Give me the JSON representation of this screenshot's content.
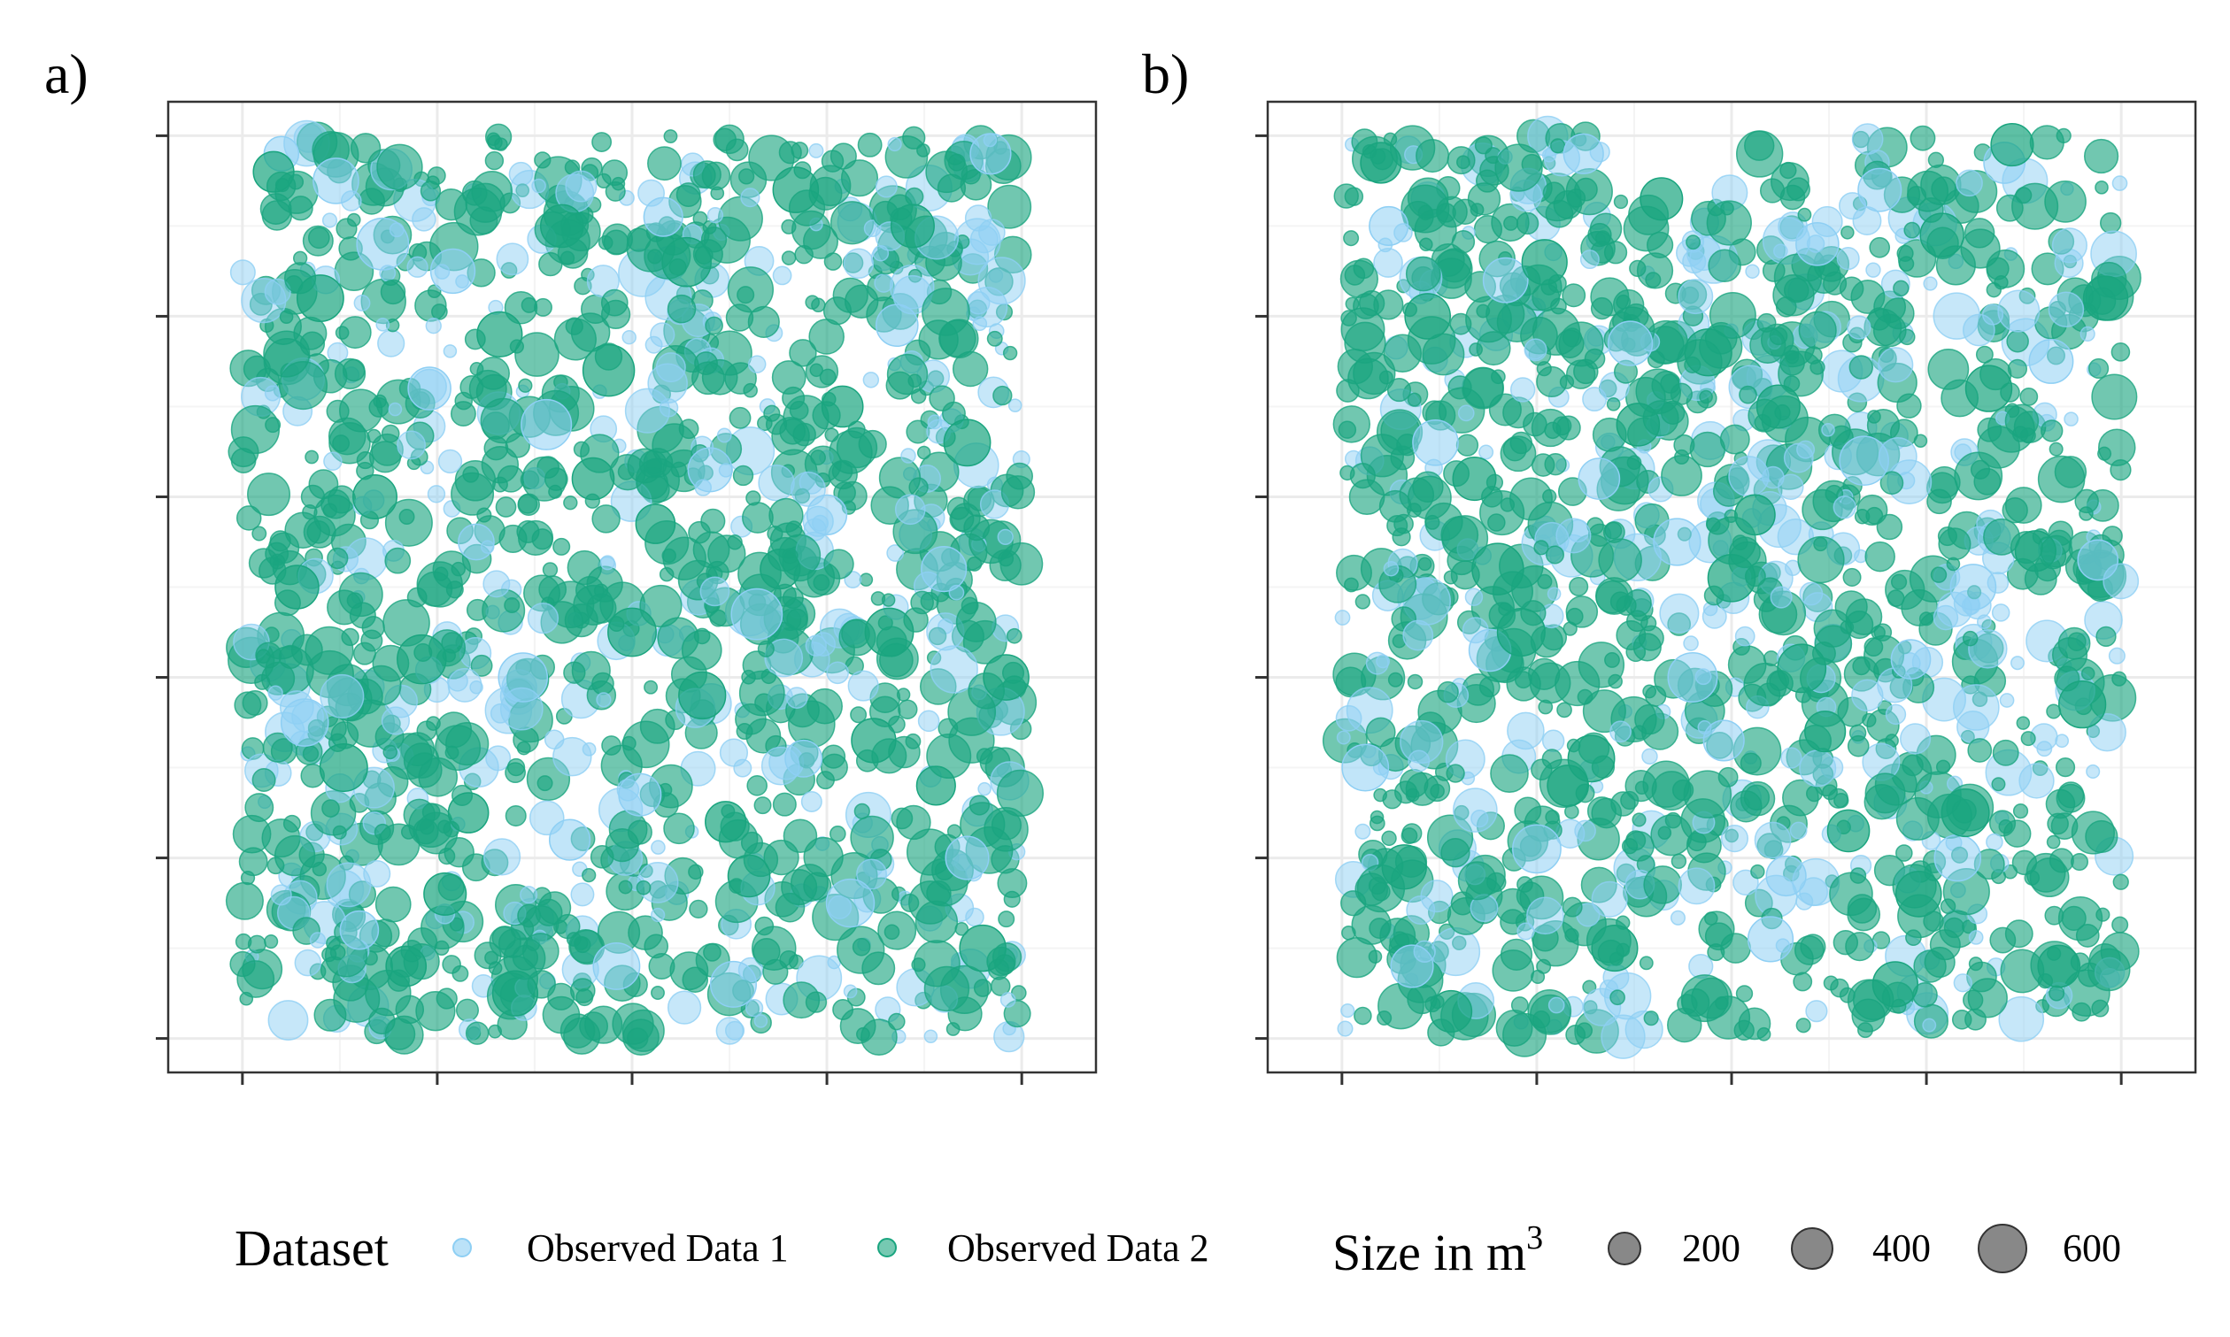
{
  "figure": {
    "size_legend_title": "Size in m",
    "size_legend_title_superscript": "3"
  },
  "legend": {
    "title": "Dataset",
    "items": [
      {
        "label": "Observed Data 1",
        "color": "#8ecff4"
      },
      {
        "label": "Observed Data 2",
        "color": "#1aa57f"
      }
    ],
    "size_items": [
      {
        "label": "200",
        "value": 200
      },
      {
        "label": "400",
        "value": 400
      },
      {
        "label": "600",
        "value": 600
      }
    ]
  },
  "chart_data": [
    {
      "type": "scatter",
      "panel_label": "a)",
      "title": "",
      "xlabel": "",
      "ylabel": "",
      "x_tick_count": 5,
      "y_tick_count": 6,
      "tick_labels_shown": false,
      "grid": true,
      "size_encoding": "Size in m3",
      "series": [
        {
          "name": "Observed Data 1",
          "color": "#8ecff4",
          "opacity": 0.55,
          "description_points_sampled": 24,
          "points": [
            [
              0.05,
              0.98,
              180
            ],
            [
              0.12,
              0.95,
              420
            ],
            [
              0.18,
              0.88,
              610
            ],
            [
              0.24,
              0.72,
              350
            ],
            [
              0.3,
              0.55,
              200
            ],
            [
              0.36,
              0.4,
              520
            ],
            [
              0.42,
              0.22,
              300
            ],
            [
              0.48,
              0.08,
              450
            ],
            [
              0.54,
              0.91,
              260
            ],
            [
              0.6,
              0.63,
              380
            ],
            [
              0.66,
              0.47,
              580
            ],
            [
              0.72,
              0.31,
              220
            ],
            [
              0.78,
              0.15,
              490
            ],
            [
              0.84,
              0.79,
              330
            ],
            [
              0.9,
              0.52,
              410
            ],
            [
              0.96,
              0.98,
              300
            ],
            [
              0.08,
              0.35,
              470
            ],
            [
              0.15,
              0.12,
              250
            ],
            [
              0.27,
              0.85,
              390
            ],
            [
              0.39,
              0.68,
              560
            ],
            [
              0.51,
              0.27,
              340
            ],
            [
              0.63,
              0.06,
              430
            ],
            [
              0.75,
              0.58,
              280
            ],
            [
              0.93,
              0.2,
              360
            ]
          ]
        },
        {
          "name": "Observed Data 2",
          "color": "#1aa57f",
          "opacity": 0.7,
          "description_points_sampled": 30,
          "points": [
            [
              0.04,
              0.96,
              300
            ],
            [
              0.1,
              0.82,
              450
            ],
            [
              0.17,
              0.6,
              380
            ],
            [
              0.23,
              0.42,
              520
            ],
            [
              0.29,
              0.25,
              290
            ],
            [
              0.35,
              0.05,
              410
            ],
            [
              0.41,
              0.9,
              350
            ],
            [
              0.47,
              0.74,
              600
            ],
            [
              0.53,
              0.57,
              270
            ],
            [
              0.59,
              0.38,
              460
            ],
            [
              0.65,
              0.18,
              330
            ],
            [
              0.71,
              0.94,
              420
            ],
            [
              0.77,
              0.7,
              310
            ],
            [
              0.83,
              0.45,
              500
            ],
            [
              0.89,
              0.28,
              260
            ],
            [
              0.95,
              0.1,
              440
            ],
            [
              0.07,
              0.5,
              370
            ],
            [
              0.13,
              0.3,
              480
            ],
            [
              0.21,
              0.08,
              290
            ],
            [
              0.33,
              0.78,
              410
            ],
            [
              0.45,
              0.62,
              330
            ],
            [
              0.57,
              0.86,
              520
            ],
            [
              0.69,
              0.52,
              280
            ],
            [
              0.81,
              0.33,
              390
            ],
            [
              0.93,
              0.66,
              450
            ],
            [
              0.26,
              0.16,
              340
            ],
            [
              0.5,
              0.45,
              500
            ],
            [
              0.62,
              0.24,
              300
            ],
            [
              0.86,
              0.9,
              360
            ],
            [
              0.98,
              0.4,
              420
            ]
          ]
        }
      ]
    },
    {
      "type": "scatter",
      "panel_label": "b)",
      "title": "",
      "xlabel": "",
      "ylabel": "",
      "x_tick_count": 5,
      "y_tick_count": 6,
      "tick_labels_shown": false,
      "grid": true,
      "size_encoding": "Size in m3",
      "series": [
        {
          "name": "Observed Data 1",
          "color": "#8ecff4",
          "opacity": 0.55,
          "description_points_sampled": 24,
          "points": [
            [
              0.06,
              0.9,
              260
            ],
            [
              0.12,
              0.66,
              420
            ],
            [
              0.19,
              0.43,
              330
            ],
            [
              0.25,
              0.21,
              500
            ],
            [
              0.31,
              0.98,
              280
            ],
            [
              0.37,
              0.77,
              390
            ],
            [
              0.43,
              0.55,
              460
            ],
            [
              0.49,
              0.33,
              300
            ],
            [
              0.55,
              0.11,
              410
            ],
            [
              0.61,
              0.88,
              350
            ],
            [
              0.67,
              0.64,
              520
            ],
            [
              0.73,
              0.42,
              270
            ],
            [
              0.79,
              0.2,
              440
            ],
            [
              0.85,
              0.97,
              310
            ],
            [
              0.91,
              0.75,
              380
            ],
            [
              0.97,
              0.53,
              290
            ],
            [
              0.03,
              0.3,
              450
            ],
            [
              0.09,
              0.08,
              340
            ],
            [
              0.21,
              0.84,
              400
            ],
            [
              0.33,
              0.62,
              310
            ],
            [
              0.45,
              0.4,
              530
            ],
            [
              0.57,
              0.18,
              280
            ],
            [
              0.69,
              0.94,
              360
            ],
            [
              0.81,
              0.5,
              420
            ]
          ]
        },
        {
          "name": "Observed Data 2",
          "color": "#1aa57f",
          "opacity": 0.7,
          "description_points_sampled": 30,
          "points": [
            [
              0.05,
              0.97,
              300
            ],
            [
              0.11,
              0.8,
              420
            ],
            [
              0.17,
              0.62,
              360
            ],
            [
              0.23,
              0.45,
              480
            ],
            [
              0.29,
              0.28,
              310
            ],
            [
              0.35,
              0.1,
              430
            ],
            [
              0.41,
              0.93,
              340
            ],
            [
              0.47,
              0.76,
              460
            ],
            [
              0.53,
              0.58,
              290
            ],
            [
              0.59,
              0.41,
              500
            ],
            [
              0.65,
              0.23,
              330
            ],
            [
              0.71,
              0.06,
              410
            ],
            [
              0.77,
              0.89,
              370
            ],
            [
              0.83,
              0.72,
              440
            ],
            [
              0.89,
              0.54,
              300
            ],
            [
              0.95,
              0.37,
              460
            ],
            [
              0.08,
              0.19,
              390
            ],
            [
              0.14,
              0.03,
              320
            ],
            [
              0.26,
              0.86,
              410
            ],
            [
              0.38,
              0.68,
              350
            ],
            [
              0.5,
              0.51,
              470
            ],
            [
              0.62,
              0.34,
              300
            ],
            [
              0.74,
              0.16,
              420
            ],
            [
              0.86,
              0.99,
              340
            ],
            [
              0.98,
              0.82,
              390
            ],
            [
              0.2,
              0.52,
              600
            ],
            [
              0.32,
              0.31,
              450
            ],
            [
              0.56,
              0.7,
              360
            ],
            [
              0.8,
              0.25,
              480
            ],
            [
              0.92,
              0.08,
              330
            ]
          ]
        }
      ]
    }
  ]
}
